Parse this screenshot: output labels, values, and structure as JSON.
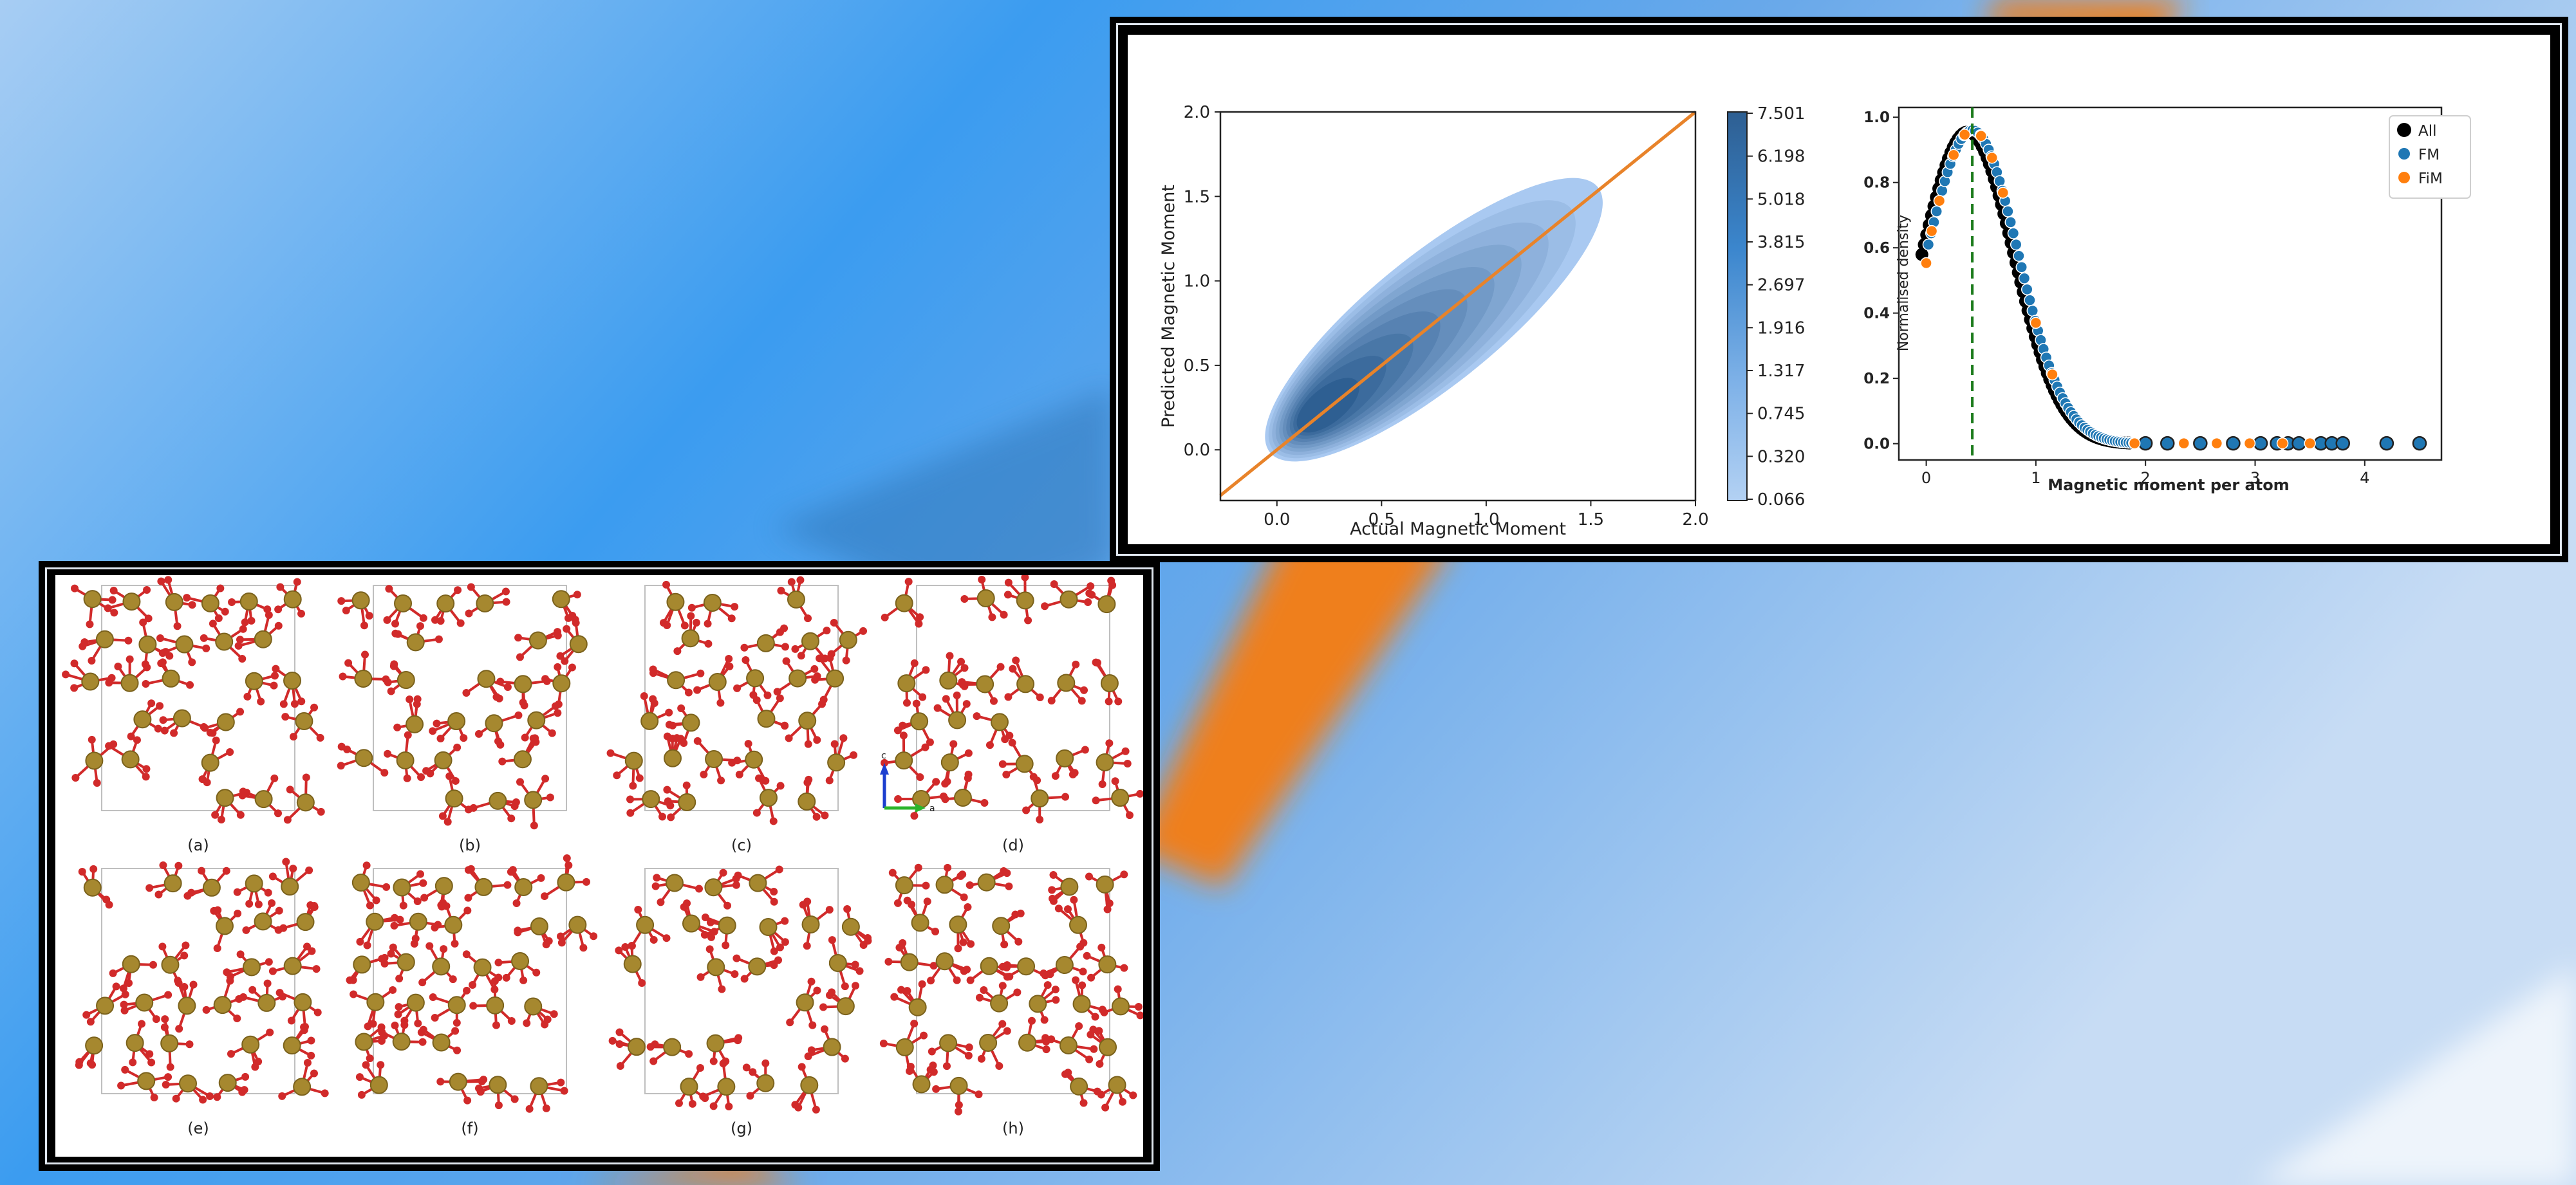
{
  "colors": {
    "kde_low": "#a9c9f1",
    "kde_high": "#2e5f92",
    "identity_line": "#e8832a",
    "all": "#000000",
    "fm": "#1f77b4",
    "fim": "#ff7f0e",
    "vline": "#1a7a1a",
    "atom_fe": "#a6882f",
    "atom_o": "#d12a2a",
    "background_blue": "#3b9cf0",
    "background_orange": "#ef7f1c"
  },
  "chart_data": [
    {
      "type": "heatmap",
      "subtype": "kde-density",
      "xlabel": "Actual Magnetic Moment",
      "ylabel": "Predicted Magnetic Moment",
      "xlim": [
        -0.27,
        2.0
      ],
      "ylim": [
        -0.3,
        2.0
      ],
      "x_ticks": [
        "0.0",
        "0.5",
        "1.0",
        "1.5",
        "2.0"
      ],
      "y_ticks": [
        "0.0",
        "0.5",
        "1.0",
        "1.5",
        "2.0"
      ],
      "colorbar_ticks": [
        "7.501",
        "6.198",
        "5.018",
        "3.815",
        "2.697",
        "1.916",
        "1.317",
        "0.745",
        "0.320",
        "0.066"
      ],
      "density_center": [
        0.2,
        0.22
      ],
      "identity_line": [
        [
          -0.27,
          -0.27
        ],
        [
          2.0,
          2.0
        ]
      ]
    },
    {
      "type": "scatter",
      "xlabel": "Magnetic moment per atom",
      "ylabel": "Normalised density",
      "xlim": [
        -0.25,
        4.7
      ],
      "ylim": [
        -0.05,
        1.03
      ],
      "x_ticks": [
        "0",
        "1",
        "2",
        "3",
        "4"
      ],
      "y_ticks": [
        "0.0",
        "0.2",
        "0.4",
        "0.6",
        "0.8",
        "1.0"
      ],
      "legend": [
        "All",
        "FM",
        "FiM"
      ],
      "legend_position": "top-right",
      "vline_x": 0.42,
      "peak": {
        "x": 0.42,
        "y": 0.96
      },
      "tail_points_fm": [
        2.0,
        2.2,
        2.5,
        2.8,
        3.05,
        3.2,
        3.3,
        3.4,
        3.6,
        3.7,
        3.8,
        4.2,
        4.5
      ],
      "tail_points_fim": [
        1.9,
        2.35,
        2.65,
        2.95,
        3.25,
        3.5
      ]
    }
  ],
  "structures": {
    "row1": [
      "(a)",
      "(b)",
      "(c)",
      "(d)"
    ],
    "row2": [
      "(e)",
      "(f)",
      "(g)",
      "(h)"
    ],
    "axis_labels": {
      "c": "c",
      "a": "a"
    }
  }
}
